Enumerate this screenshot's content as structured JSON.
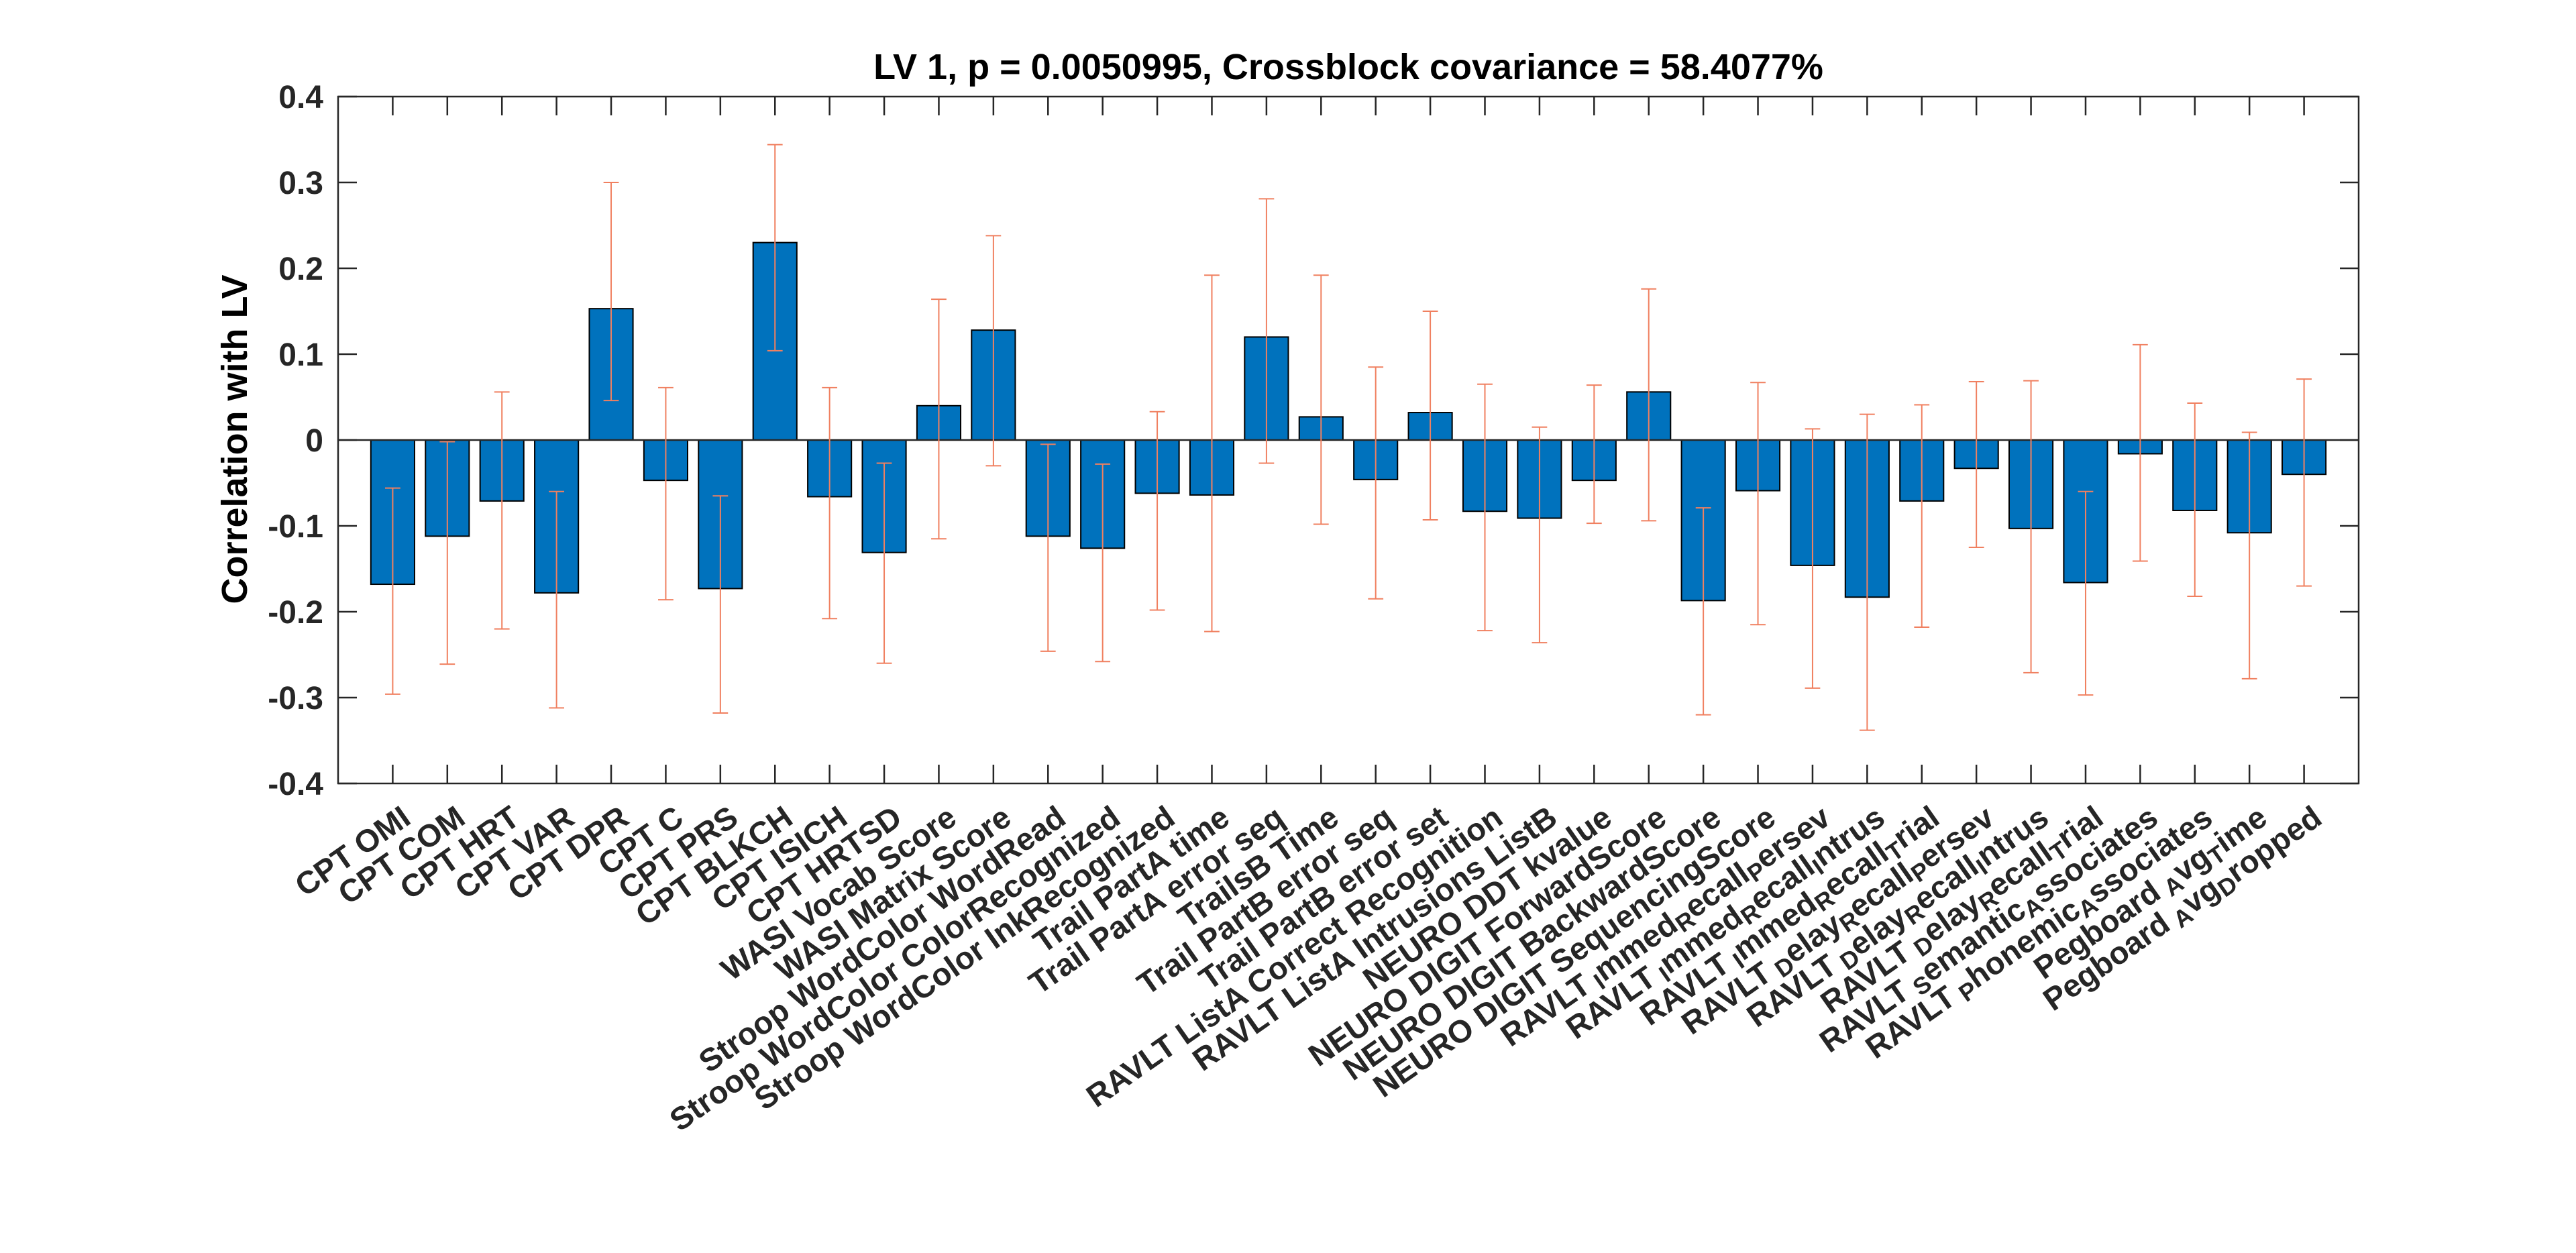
{
  "chart_data": {
    "type": "bar",
    "title": "LV 1, p = 0.0050995, Crossblock covariance = 58.4077%",
    "xlabel": "",
    "ylabel": "Correlation with LV",
    "ylim": [
      -0.4,
      0.4
    ],
    "yticks": [
      "-0.4",
      "-0.3",
      "-0.2",
      "-0.1",
      "0",
      "0.1",
      "0.2",
      "0.3",
      "0.4"
    ],
    "grid": false,
    "bar_color": "#0072BD",
    "error_color": "#F08060",
    "categories": [
      {
        "label": "CPT OMI"
      },
      {
        "label": "CPT COM"
      },
      {
        "label": "CPT HRT"
      },
      {
        "label": "CPT VAR"
      },
      {
        "label": "CPT DPR"
      },
      {
        "label": "CPT C"
      },
      {
        "label": "CPT PRS"
      },
      {
        "label": "CPT BLKCH"
      },
      {
        "label": "CPT ISICH"
      },
      {
        "label": "CPT HRTSD"
      },
      {
        "label": "WASI Vocab Score"
      },
      {
        "label": "WASI Matrix Score"
      },
      {
        "label": "Stroop WordColor WordRead"
      },
      {
        "label": "Stroop WordColor ColorRecognized"
      },
      {
        "label": "Stroop WordColor InkRecognized"
      },
      {
        "label": "Trail PartA time"
      },
      {
        "label": "Trail PartA error seq"
      },
      {
        "label": "TrailsB Time"
      },
      {
        "label": "Trail PartB error seq"
      },
      {
        "label": "Trail PartB error set"
      },
      {
        "label": "RAVLT ListA Correct Recognition"
      },
      {
        "label": "RAVLT ListA Intrusions ListB"
      },
      {
        "label": "NEURO DDT kvalue"
      },
      {
        "label": "NEURO DIGIT ForwardScore"
      },
      {
        "label": "NEURO DIGIT BackwardScore"
      },
      {
        "label": "NEURO DIGIT SequencingScore"
      },
      {
        "label": "RAVLT",
        "parts": [
          [
            "I",
            "mmed"
          ],
          [
            "R",
            "ecall"
          ],
          [
            "P",
            "ersev"
          ]
        ]
      },
      {
        "label": "RAVLT",
        "parts": [
          [
            "I",
            "mmed"
          ],
          [
            "R",
            "ecall"
          ],
          [
            "I",
            "ntrus"
          ]
        ]
      },
      {
        "label": "RAVLT",
        "parts": [
          [
            "I",
            "mmed"
          ],
          [
            "R",
            "ecall"
          ],
          [
            "T",
            "rial"
          ]
        ]
      },
      {
        "label": "RAVLT",
        "parts": [
          [
            "D",
            "elay"
          ],
          [
            "R",
            "ecall"
          ],
          [
            "P",
            "ersev"
          ]
        ]
      },
      {
        "label": "RAVLT",
        "parts": [
          [
            "D",
            "elay"
          ],
          [
            "R",
            "ecall"
          ],
          [
            "I",
            "ntrus"
          ]
        ]
      },
      {
        "label": "RAVLT",
        "parts": [
          [
            "D",
            "elay"
          ],
          [
            "R",
            "ecall"
          ],
          [
            "T",
            "rial"
          ]
        ]
      },
      {
        "label": "RAVLT",
        "parts": [
          [
            "S",
            "emantic"
          ],
          [
            "A",
            "ssociates"
          ]
        ]
      },
      {
        "label": "RAVLT",
        "parts": [
          [
            "P",
            "honemic"
          ],
          [
            "A",
            "ssociates"
          ]
        ]
      },
      {
        "label": "Pegboard",
        "parts": [
          [
            "A",
            "vg"
          ],
          [
            "T",
            "ime"
          ]
        ]
      },
      {
        "label": "Pegboard",
        "parts": [
          [
            "A",
            "vg"
          ],
          [
            "D",
            "ropped"
          ]
        ]
      }
    ],
    "values": [
      -0.168,
      -0.112,
      -0.071,
      -0.178,
      0.153,
      -0.047,
      -0.173,
      0.23,
      -0.066,
      -0.131,
      0.04,
      0.128,
      -0.112,
      -0.126,
      -0.062,
      -0.064,
      0.12,
      0.027,
      -0.046,
      0.032,
      -0.083,
      -0.091,
      -0.047,
      0.056,
      -0.187,
      -0.059,
      -0.146,
      -0.183,
      -0.071,
      -0.033,
      -0.103,
      -0.166,
      -0.016,
      -0.082,
      -0.108,
      -0.04
    ],
    "error_low": [
      -0.296,
      -0.261,
      -0.22,
      -0.312,
      0.046,
      -0.186,
      -0.318,
      0.104,
      -0.208,
      -0.26,
      -0.115,
      -0.03,
      -0.246,
      -0.258,
      -0.198,
      -0.223,
      -0.027,
      -0.098,
      -0.185,
      -0.093,
      -0.222,
      -0.236,
      -0.097,
      -0.094,
      -0.32,
      -0.215,
      -0.289,
      -0.338,
      -0.218,
      -0.125,
      -0.271,
      -0.297,
      -0.141,
      -0.182,
      -0.278,
      -0.17
    ],
    "error_high": [
      -0.056,
      -0.002,
      0.056,
      -0.06,
      0.3,
      0.061,
      -0.065,
      0.344,
      0.061,
      -0.027,
      0.164,
      0.238,
      -0.005,
      -0.028,
      0.033,
      0.192,
      0.281,
      0.192,
      0.085,
      0.15,
      0.065,
      0.015,
      0.064,
      0.176,
      -0.079,
      0.067,
      0.013,
      0.03,
      0.041,
      0.068,
      0.069,
      -0.06,
      0.111,
      0.043,
      0.009,
      0.071
    ]
  }
}
